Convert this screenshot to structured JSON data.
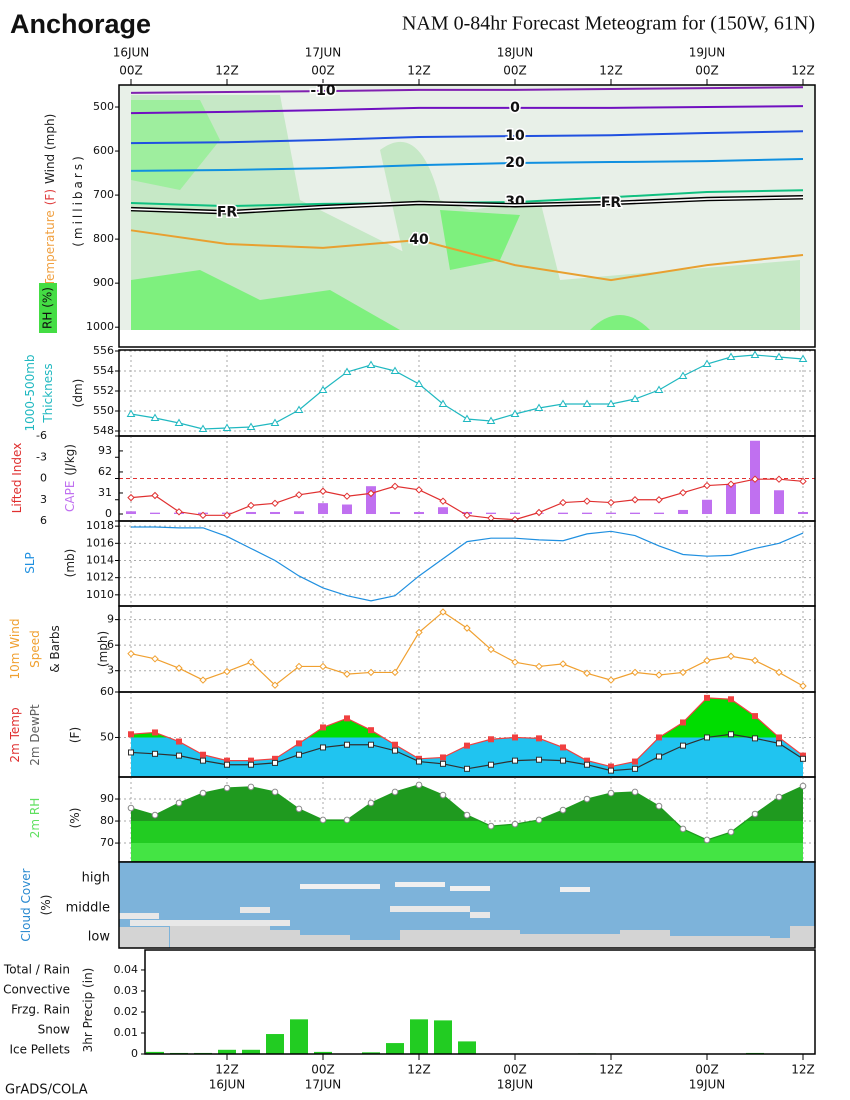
{
  "header": {
    "title": "Anchorage",
    "subtitle": "NAM 0-84hr Forecast Meteogram for (150W, 61N)",
    "credit": "GrADS/COLA"
  },
  "time_axis": {
    "xlim": [
      -1.5,
      85.5
    ],
    "top_xticks": [
      {
        "value": 0,
        "label": "00Z"
      },
      {
        "value": 12,
        "label": "12Z"
      },
      {
        "value": 24,
        "label": "00Z"
      },
      {
        "value": 36,
        "label": "12Z"
      },
      {
        "value": 48,
        "label": "00Z"
      },
      {
        "value": 60,
        "label": "12Z"
      },
      {
        "value": 72,
        "label": "00Z"
      },
      {
        "value": 84,
        "label": "12Z"
      }
    ],
    "top_dates": [
      {
        "value": 0,
        "label": "16JUN"
      },
      {
        "value": 24,
        "label": "17JUN"
      },
      {
        "value": 48,
        "label": "18JUN"
      },
      {
        "value": 72,
        "label": "19JUN"
      }
    ],
    "bottom_xticks": [
      {
        "value": 12,
        "label": "12Z"
      },
      {
        "value": 24,
        "label": "00Z"
      },
      {
        "value": 36,
        "label": "12Z"
      },
      {
        "value": 48,
        "label": "00Z"
      },
      {
        "value": 60,
        "label": "12Z"
      },
      {
        "value": 72,
        "label": "00Z"
      },
      {
        "value": 84,
        "label": "12Z"
      }
    ],
    "bottom_dates": [
      {
        "value": 12,
        "label": "16JUN"
      },
      {
        "value": 24,
        "label": "17JUN"
      },
      {
        "value": 48,
        "label": "18JUN"
      },
      {
        "value": 72,
        "label": "19JUN"
      }
    ]
  },
  "chart_data": [
    {
      "type": "contour",
      "ylabel": [
        [
          {
            "text": "Temperature",
            "color": "#f0a040"
          },
          {
            "text": "(F)",
            "color": "#e04040"
          },
          {
            "text": "Wind (mph)",
            "color": "#202020"
          }
        ],
        [
          {
            "text": "(millibars)",
            "color": "#202020"
          }
        ]
      ],
      "rh_label": {
        "text": "RH (%)",
        "color": "#d8ffd8",
        "background": "#44dd44"
      },
      "ylim": [
        1045,
        450
      ],
      "yticks": [
        500,
        600,
        700,
        800,
        900,
        1000
      ],
      "x": [
        0,
        12,
        24,
        36,
        48,
        60,
        72,
        84
      ],
      "series": [
        {
          "name": "-10",
          "color": "#8020b0",
          "values": [
            468,
            466,
            464,
            461,
            461,
            459,
            457,
            455
          ]
        },
        {
          "name": "0",
          "color": "#7010c0",
          "values": [
            514,
            511,
            507,
            502,
            502,
            502,
            500,
            498
          ]
        },
        {
          "name": "10",
          "color": "#2050e0",
          "values": [
            582,
            580,
            575,
            568,
            566,
            564,
            559,
            555
          ]
        },
        {
          "name": "20",
          "color": "#1090e0",
          "values": [
            645,
            643,
            639,
            632,
            627,
            625,
            623,
            618
          ]
        },
        {
          "name": "30",
          "color": "#10c080",
          "values": [
            718,
            725,
            720,
            718,
            716,
            705,
            693,
            689
          ]
        },
        {
          "name": "40",
          "color": "#e8a030",
          "values": [
            780,
            811,
            820,
            802,
            859,
            893,
            859,
            836
          ]
        },
        {
          "name": "FR",
          "color": "#000000",
          "style": "double",
          "values": [
            732,
            739,
            727,
            718,
            723,
            718,
            709,
            705
          ]
        }
      ]
    },
    {
      "type": "line",
      "ylabel": [
        [
          {
            "text": "1000-500mb",
            "color": "#20b8c0"
          }
        ],
        [
          {
            "text": "Thickness",
            "color": "#20b8c0"
          }
        ],
        [
          {
            "text": "(dm)",
            "color": "#202020"
          }
        ]
      ],
      "ylim": [
        547.5,
        556.1
      ],
      "yticks": [
        548,
        550,
        552,
        554,
        556
      ],
      "grid": true,
      "x": [
        0,
        3,
        6,
        9,
        12,
        15,
        18,
        21,
        24,
        27,
        30,
        33,
        36,
        39,
        42,
        45,
        48,
        51,
        54,
        57,
        60,
        63,
        66,
        69,
        72,
        75,
        78,
        81,
        84
      ],
      "series": [
        {
          "name": "Thickness",
          "type": "line",
          "color": "#20b8c0",
          "marker": "triangle",
          "values": [
            549.7,
            549.3,
            548.8,
            548.2,
            548.3,
            548.4,
            548.8,
            550.1,
            552.1,
            553.9,
            554.6,
            554.0,
            552.7,
            550.7,
            549.2,
            549.0,
            549.7,
            550.3,
            550.7,
            550.7,
            550.7,
            551.2,
            552.1,
            553.5,
            554.7,
            555.4,
            555.6,
            555.4,
            555.2
          ]
        }
      ]
    },
    {
      "type": "line",
      "ylabel": [
        [
          {
            "text": "Lifted Index",
            "color": "#e03030"
          }
        ],
        [
          {
            "text": "CAPE",
            "color": "#c070f0"
          },
          {
            "text": "(J/kg)",
            "color": "#202020"
          }
        ]
      ],
      "ylim": [
        6,
        -6
      ],
      "yticks": [
        -6,
        -3,
        0,
        3,
        6
      ],
      "y2lim": [
        -10.3,
        115
      ],
      "y2ticks": [
        0,
        31,
        62,
        93
      ],
      "grid": true,
      "reference_line": 0,
      "x": [
        0,
        3,
        6,
        9,
        12,
        15,
        18,
        21,
        24,
        27,
        30,
        33,
        36,
        39,
        42,
        45,
        48,
        51,
        54,
        57,
        60,
        63,
        66,
        69,
        72,
        75,
        78,
        81,
        84
      ],
      "series": [
        {
          "name": "CAPE",
          "type": "bar",
          "axis": "y2",
          "color": "#c070f0",
          "values": [
            4,
            2,
            2,
            2,
            2,
            3,
            3,
            4,
            16,
            14,
            41,
            3,
            3,
            10,
            3,
            2,
            2,
            1,
            2,
            2,
            2,
            2,
            2,
            6,
            21,
            44,
            108,
            35,
            3
          ]
        },
        {
          "name": "Lifted Index",
          "type": "line",
          "color": "#e03030",
          "marker": "diamond",
          "values": [
            2.7,
            2.4,
            4.7,
            5.2,
            5.2,
            3.8,
            3.5,
            2.3,
            1.8,
            2.5,
            2.1,
            1.1,
            1.6,
            3.2,
            5.2,
            5.6,
            5.8,
            4.8,
            3.4,
            3.2,
            3.4,
            3.0,
            3.0,
            2.0,
            1.0,
            0.8,
            0.1,
            0.1,
            0.4
          ]
        }
      ]
    },
    {
      "type": "line",
      "ylabel": [
        [
          {
            "text": "SLP",
            "color": "#2090e0"
          }
        ],
        [
          {
            "text": "(mb)",
            "color": "#202020"
          }
        ]
      ],
      "ylim": [
        1008.7,
        1018.6
      ],
      "yticks": [
        1010,
        1012,
        1014,
        1016,
        1018
      ],
      "grid": true,
      "x": [
        0,
        3,
        6,
        9,
        12,
        15,
        18,
        21,
        24,
        27,
        30,
        33,
        36,
        39,
        42,
        45,
        48,
        51,
        54,
        57,
        60,
        63,
        66,
        69,
        72,
        75,
        78,
        81,
        84
      ],
      "series": [
        {
          "name": "SLP",
          "type": "line",
          "color": "#2090e0",
          "marker": "none",
          "values": [
            1017.9,
            1017.9,
            1017.8,
            1017.8,
            1016.8,
            1015.4,
            1014.0,
            1012.2,
            1010.8,
            1009.9,
            1009.3,
            1009.9,
            1012.2,
            1014.2,
            1016.2,
            1016.6,
            1016.6,
            1016.4,
            1016.3,
            1017.1,
            1017.4,
            1016.9,
            1015.7,
            1014.7,
            1014.5,
            1014.6,
            1015.4,
            1016.0,
            1017.2
          ]
        }
      ]
    },
    {
      "type": "line",
      "ylabel": [
        [
          {
            "text": "10m Wind",
            "color": "#f0a030"
          }
        ],
        [
          {
            "text": "Speed",
            "color": "#f0a030"
          }
        ],
        [
          {
            "text": "& Barbs",
            "color": "#202020"
          }
        ],
        [
          {
            "text": "(mph)",
            "color": "#202020"
          }
        ]
      ],
      "ylim": [
        0.5,
        10.6
      ],
      "yticks": [
        3,
        6,
        9
      ],
      "grid": true,
      "x": [
        0,
        3,
        6,
        9,
        12,
        15,
        18,
        21,
        24,
        27,
        30,
        33,
        36,
        39,
        42,
        45,
        48,
        51,
        54,
        57,
        60,
        63,
        66,
        69,
        72,
        75,
        78,
        81,
        84
      ],
      "series": [
        {
          "name": "10m Wind Speed",
          "type": "line",
          "color": "#f0a030",
          "marker": "diamond",
          "values": [
            5.0,
            4.4,
            3.3,
            1.9,
            2.9,
            4.0,
            1.3,
            3.5,
            3.5,
            2.6,
            2.8,
            2.8,
            7.5,
            9.9,
            8.0,
            5.5,
            4.0,
            3.5,
            3.8,
            2.7,
            1.9,
            2.8,
            2.5,
            2.8,
            4.2,
            4.7,
            4.2,
            2.8,
            1.2
          ]
        }
      ]
    },
    {
      "type": "area",
      "ylabel": [
        [
          {
            "text": "2m Temp",
            "color": "#e03030"
          }
        ],
        [
          {
            "text": "2m DewPt",
            "color": "#606060"
          }
        ],
        [
          {
            "text": "(F)",
            "color": "#202020"
          }
        ]
      ],
      "ylim": [
        41.3,
        60
      ],
      "yticks": [
        50,
        60
      ],
      "grid": true,
      "x": [
        0,
        3,
        6,
        9,
        12,
        15,
        18,
        21,
        24,
        27,
        30,
        33,
        36,
        39,
        42,
        45,
        48,
        51,
        54,
        57,
        60,
        63,
        66,
        69,
        72,
        75,
        78,
        81,
        84
      ],
      "series": [
        {
          "name": "2m Temp",
          "type": "area",
          "color": "#f04040",
          "marker": "square",
          "marker_fill": "#f04040",
          "fills": [
            {
              "color": "#00dd00"
            },
            {
              "color": "#20c4f0",
              "below": 50
            }
          ],
          "values": [
            50.7,
            51.1,
            49.1,
            46.2,
            44.9,
            44.9,
            45.3,
            48.7,
            52.2,
            54.2,
            51.6,
            48.4,
            45.3,
            45.6,
            48.2,
            49.6,
            50.0,
            49.8,
            47.8,
            44.9,
            43.6,
            44.7,
            50.0,
            53.3,
            58.7,
            58.4,
            54.7,
            50.0,
            46.0
          ]
        },
        {
          "name": "2m DewPt",
          "type": "line",
          "color": "#303030",
          "marker": "square",
          "marker_fill": "#ffffff",
          "values": [
            46.7,
            46.4,
            46.0,
            44.9,
            44.0,
            44.0,
            44.4,
            46.2,
            47.8,
            48.4,
            48.4,
            47.1,
            44.7,
            44.2,
            43.1,
            44.0,
            44.9,
            45.1,
            44.9,
            44.0,
            42.7,
            43.1,
            45.8,
            48.2,
            50.0,
            50.7,
            49.8,
            48.7,
            45.3
          ]
        }
      ]
    },
    {
      "type": "area",
      "ylabel": [
        [
          {
            "text": "2m RH",
            "color": "#60e060"
          }
        ],
        [
          {
            "text": "(%)",
            "color": "#202020"
          }
        ]
      ],
      "ylim": [
        61.4,
        100
      ],
      "yticks": [
        70,
        80,
        90
      ],
      "grid": true,
      "x": [
        0,
        3,
        6,
        9,
        12,
        15,
        18,
        21,
        24,
        27,
        30,
        33,
        36,
        39,
        42,
        45,
        48,
        51,
        54,
        57,
        60,
        63,
        66,
        69,
        72,
        75,
        78,
        81,
        84
      ],
      "series": [
        {
          "name": "2m RH",
          "type": "area",
          "color": "#1f9a1f",
          "marker": "circle",
          "marker_fill": "#ffffff",
          "fills": [
            {
              "color": "#1f9a1f"
            },
            {
              "color": "#22cc22",
              "below": 80
            },
            {
              "color": "#44e444",
              "below": 70
            }
          ],
          "values": [
            85.9,
            82.7,
            88.2,
            92.7,
            95.0,
            95.5,
            93.2,
            85.5,
            80.5,
            80.5,
            88.2,
            93.2,
            96.4,
            91.8,
            82.7,
            77.7,
            78.6,
            80.5,
            85.0,
            90.0,
            92.7,
            93.2,
            86.8,
            76.4,
            71.4,
            75.0,
            83.2,
            90.9,
            95.9
          ]
        }
      ]
    },
    {
      "type": "cloud",
      "ylabel": [
        [
          {
            "text": "Cloud Cover",
            "color": "#2a8ad0"
          }
        ],
        [
          {
            "text": "(%)",
            "color": "#202020"
          }
        ]
      ],
      "levels": [
        "high",
        "middle",
        "low"
      ]
    },
    {
      "type": "bar",
      "ylabel": [
        [
          {
            "text": "3hr Precip (in)",
            "color": "#202020"
          }
        ]
      ],
      "legend": [
        {
          "name": "Total / Rain",
          "color": "#22cc22"
        },
        {
          "name": "Convective",
          "color": "#e03030"
        },
        {
          "name": "Frzg. Rain",
          "color": "#f0a030"
        },
        {
          "name": "Snow",
          "color": "#3050e0"
        },
        {
          "name": "Ice Pellets",
          "color": "#20c8d0"
        }
      ],
      "ylim": [
        0,
        0.0495
      ],
      "yticks": [
        0,
        0.01,
        0.02,
        0.03,
        0.04
      ],
      "x": [
        3,
        6,
        9,
        12,
        15,
        18,
        21,
        24,
        27,
        30,
        33,
        36,
        39,
        42,
        45,
        48,
        51,
        54,
        57,
        60,
        63,
        66,
        69,
        72,
        75,
        78,
        81,
        84
      ],
      "series": [
        {
          "name": "Total / Rain",
          "type": "bar",
          "color": "#22cc22",
          "values": [
            0.001,
            0.0005,
            0.0005,
            0.002,
            0.002,
            0.0095,
            0.0165,
            0.001,
            0,
            0.0008,
            0.0052,
            0.0165,
            0.016,
            0.006,
            0,
            0,
            0,
            0,
            0.0003,
            0,
            0,
            0,
            0,
            0,
            0,
            0.0005,
            0,
            0
          ]
        }
      ]
    }
  ]
}
